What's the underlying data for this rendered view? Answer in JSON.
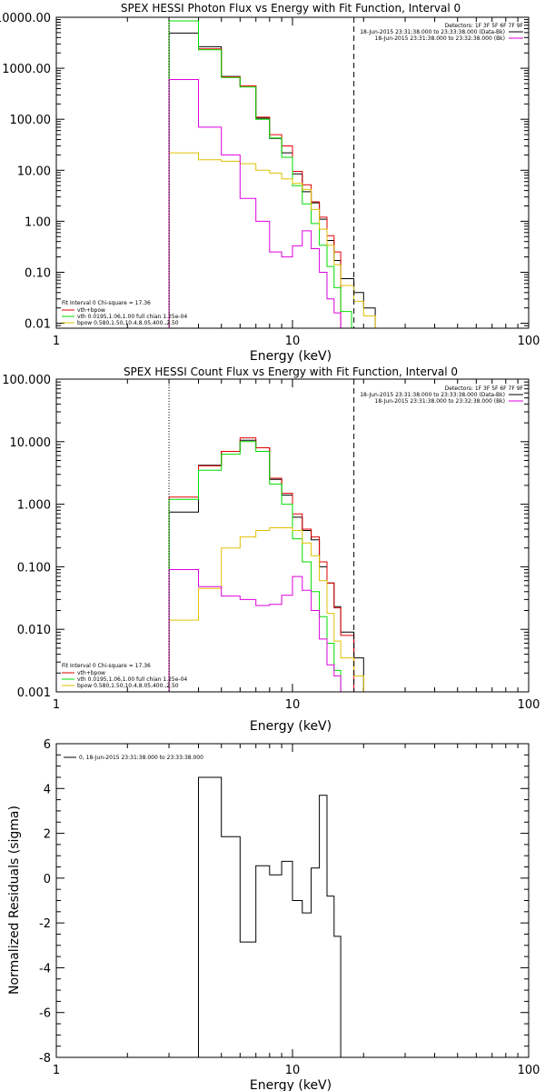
{
  "colors": {
    "total": "#000000",
    "fit": "#e00000",
    "vth": "#00dd00",
    "bpow": "#e0c000",
    "bk": "#dd00dd",
    "resid": "#000000"
  },
  "chart_data": [
    {
      "type": "line",
      "title": "SPEX HESSI Photon Flux vs Energy with Fit Function, Interval 0",
      "xlabel": "Energy (keV)",
      "ylabel": "",
      "xscale": "log",
      "yscale": "log",
      "xlim": [
        1,
        100
      ],
      "ylim": [
        0.008,
        10000
      ],
      "xticks": [
        {
          "v": 1,
          "label": "1"
        },
        {
          "v": 10,
          "label": "10"
        },
        {
          "v": 100,
          "label": "100"
        }
      ],
      "yticks": [
        {
          "v": 10000,
          "label": "10000.00"
        },
        {
          "v": 1000,
          "label": "1000.00"
        },
        {
          "v": 100,
          "label": "100.00"
        },
        {
          "v": 10,
          "label": "10.00"
        },
        {
          "v": 1,
          "label": "1.00"
        },
        {
          "v": 0.1,
          "label": "0.10"
        },
        {
          "v": 0.01,
          "label": "0.01"
        }
      ],
      "vlines": [
        {
          "x": 3.0,
          "style": "dotted"
        },
        {
          "x": 18.2,
          "style": "dashed"
        }
      ],
      "detectors_line": "Detectors: 1F 3F 5F 6F 7F 9F",
      "legend_right": [
        {
          "text": "18-Jun-2015 23:31:38.000 to 23:33:38.000 (Data-Bk)",
          "color": "#000000"
        },
        {
          "text": "18-Jun-2015 23:31:38.000 to 23:32:38.000 (Bk)",
          "color": "#dd00dd"
        }
      ],
      "legend_left": [
        {
          "text": "Fit Interval 0   Chi-square = 17.36",
          "color": null
        },
        {
          "text": "vth+bpow",
          "color": "#e00000"
        },
        {
          "text": "vth 0.0195,1.06,1.00  full chian 1.25e-04",
          "color": "#00dd00"
        },
        {
          "text": "bpow 0.580,1.50,10.4,8.05,400.,2.50",
          "color": "#e0c000"
        }
      ],
      "series": [
        {
          "key": "total",
          "edges": [
            3.0,
            4.0,
            5.0,
            6.0,
            7.0,
            8.0,
            9.0,
            10.0,
            11.0,
            12.0,
            13.0,
            14.0,
            15.0,
            16.0,
            18.2,
            20.0,
            22.4
          ],
          "values": [
            4900,
            2650,
            690,
            450,
            105,
            42,
            22,
            8.5,
            3.8,
            2.3,
            1.1,
            0.42,
            0.17,
            0.075,
            0.04,
            0.02
          ]
        },
        {
          "key": "fit",
          "edges": [
            3.0,
            4.0,
            5.0,
            6.0,
            7.0,
            8.0,
            9.0,
            10.0,
            11.0,
            12.0,
            13.0,
            14.0,
            15.0,
            16.0
          ],
          "values": [
            8500,
            2400,
            680,
            450,
            110,
            50,
            30,
            9.5,
            5.2,
            2.4,
            1.2,
            0.52,
            0.25
          ]
        },
        {
          "key": "vth",
          "edges": [
            3.0,
            4.0,
            5.0,
            6.0,
            7.0,
            8.0,
            9.0,
            10.0,
            11.0,
            12.0,
            13.0,
            14.0,
            15.0,
            16.0,
            17.8
          ],
          "values": [
            8500,
            2300,
            660,
            430,
            100,
            43,
            18,
            5.0,
            2.2,
            0.9,
            0.34,
            0.13,
            0.05,
            0.017
          ]
        },
        {
          "key": "bpow",
          "edges": [
            3.0,
            4.0,
            5.0,
            6.0,
            7.0,
            8.0,
            9.0,
            10.0,
            11.0,
            12.0,
            13.0,
            14.0,
            15.0,
            16.0,
            18.2,
            20.0,
            22.4
          ],
          "values": [
            22,
            16,
            15,
            13.5,
            10,
            8.8,
            6.8,
            5.5,
            4.2,
            1.7,
            0.7,
            0.34,
            0.14,
            0.055,
            0.027,
            0.014
          ]
        },
        {
          "key": "bk",
          "edges": [
            3.0,
            4.0,
            5.0,
            6.0,
            7.0,
            8.0,
            9.0,
            10.0,
            11.0,
            12.0,
            13.0,
            14.0,
            15.0,
            16.0
          ],
          "values": [
            600,
            70,
            20,
            2.8,
            1.0,
            0.25,
            0.2,
            0.33,
            0.65,
            0.29,
            0.1,
            0.03,
            0.016
          ]
        }
      ]
    },
    {
      "type": "line",
      "title": "SPEX HESSI Count Flux vs Energy with Fit Function, Interval 0",
      "xlabel": "Energy (keV)",
      "ylabel": "",
      "xscale": "log",
      "yscale": "log",
      "xlim": [
        1,
        100
      ],
      "ylim": [
        0.001,
        100
      ],
      "xticks": [
        {
          "v": 1,
          "label": "1"
        },
        {
          "v": 10,
          "label": "10"
        },
        {
          "v": 100,
          "label": "100"
        }
      ],
      "yticks": [
        {
          "v": 100,
          "label": "100.000"
        },
        {
          "v": 10,
          "label": "10.000"
        },
        {
          "v": 1,
          "label": "1.000"
        },
        {
          "v": 0.1,
          "label": "0.100"
        },
        {
          "v": 0.01,
          "label": "0.010"
        },
        {
          "v": 0.001,
          "label": "0.001"
        }
      ],
      "vlines": [
        {
          "x": 3.0,
          "style": "dotted"
        },
        {
          "x": 18.2,
          "style": "dashed"
        }
      ],
      "detectors_line": "Detectors: 1F 3F 5F 6F 7F 9F",
      "legend_right": [
        {
          "text": "18-Jun-2015 23:31:38.000 to 23:33:38.000 (Data-Bk)",
          "color": "#000000"
        },
        {
          "text": "18-Jun-2015 23:31:38.000 to 23:32:38.000 (Bk)",
          "color": "#dd00dd"
        }
      ],
      "legend_left": [
        {
          "text": "Fit Interval 0   Chi-square = 17.36",
          "color": null
        },
        {
          "text": "vth+bpow",
          "color": "#e00000"
        },
        {
          "text": "vth 0.0195,1.06,1.00  full chian 1.25e-04",
          "color": "#00dd00"
        },
        {
          "text": "bpow 0.580,1.50,10.4,8.05,400.,2.50",
          "color": "#e0c000"
        }
      ],
      "series": [
        {
          "key": "total",
          "edges": [
            3.0,
            4.0,
            5.0,
            6.0,
            7.0,
            8.0,
            9.0,
            10.0,
            11.0,
            12.0,
            13.0,
            14.0,
            15.0,
            16.0,
            18.2,
            20.0
          ],
          "values": [
            0.75,
            4.2,
            7.0,
            10.5,
            8.0,
            2.5,
            1.4,
            0.62,
            0.38,
            0.27,
            0.1,
            0.055,
            0.023,
            0.009,
            0.0035
          ]
        },
        {
          "key": "fit",
          "edges": [
            3.0,
            4.0,
            5.0,
            6.0,
            7.0,
            8.0,
            9.0,
            10.0,
            11.0,
            12.0,
            13.0,
            14.0,
            15.0,
            16.0,
            18.2
          ],
          "values": [
            1.3,
            4.1,
            7.0,
            11.5,
            8.0,
            2.6,
            1.5,
            0.7,
            0.4,
            0.3,
            0.12,
            0.055,
            0.022,
            0.008
          ]
        },
        {
          "key": "vth",
          "edges": [
            3.0,
            4.0,
            5.0,
            6.0,
            7.0,
            8.0,
            9.0,
            10.0,
            11.0,
            12.0,
            13.0,
            14.0,
            15.0,
            16.0,
            17.8
          ],
          "values": [
            1.2,
            3.5,
            6.3,
            10.0,
            7.0,
            2.1,
            1.0,
            0.28,
            0.12,
            0.04,
            0.016,
            0.006,
            0.0022,
            0.001
          ]
        },
        {
          "key": "bpow",
          "edges": [
            3.0,
            4.0,
            5.0,
            6.0,
            7.0,
            8.0,
            9.0,
            10.0,
            11.0,
            12.0,
            13.0,
            14.0,
            15.0,
            16.0,
            18.2,
            20.0,
            22.4
          ],
          "values": [
            0.014,
            0.045,
            0.2,
            0.3,
            0.38,
            0.42,
            0.42,
            0.38,
            0.24,
            0.15,
            0.06,
            0.018,
            0.0065,
            0.0035,
            0.0018,
            0.001
          ]
        },
        {
          "key": "bk",
          "edges": [
            3.0,
            4.0,
            5.0,
            6.0,
            7.0,
            8.0,
            9.0,
            10.0,
            11.0,
            12.0,
            13.0,
            14.0,
            15.0,
            16.0
          ],
          "values": [
            0.09,
            0.048,
            0.034,
            0.03,
            0.024,
            0.025,
            0.035,
            0.07,
            0.042,
            0.02,
            0.007,
            0.0027,
            0.0018
          ]
        }
      ]
    },
    {
      "type": "line",
      "title": "",
      "xlabel": "Energy (keV)",
      "ylabel": "Normalized Residuals (sigma)",
      "xscale": "log",
      "yscale": "linear",
      "xlim": [
        1,
        100
      ],
      "ylim": [
        -8,
        6
      ],
      "xticks": [
        {
          "v": 1,
          "label": "1"
        },
        {
          "v": 10,
          "label": "10"
        },
        {
          "v": 100,
          "label": "100"
        }
      ],
      "yticks": [
        {
          "v": 6,
          "label": "6"
        },
        {
          "v": 4,
          "label": "4"
        },
        {
          "v": 2,
          "label": "2"
        },
        {
          "v": 0,
          "label": "0"
        },
        {
          "v": -2,
          "label": "-2"
        },
        {
          "v": -4,
          "label": "-4"
        },
        {
          "v": -6,
          "label": "-6"
        },
        {
          "v": -8,
          "label": "-8"
        }
      ],
      "legend_left": [
        {
          "text": "0, 18-Jun-2015 23:31:38.000 to 23:33:38.000",
          "color": "#000000"
        }
      ],
      "series": [
        {
          "key": "resid",
          "edges": [
            3.0,
            4.0,
            5.0,
            6.0,
            7.0,
            8.0,
            9.0,
            10.0,
            11.0,
            12.0,
            13.0,
            14.0,
            15.0,
            16.0,
            18.2
          ],
          "values": [
            -8.0,
            4.5,
            1.85,
            -2.85,
            0.55,
            0.15,
            0.75,
            -1.0,
            -1.55,
            0.45,
            3.7,
            -0.8,
            -2.6,
            -8.0
          ]
        }
      ]
    }
  ]
}
